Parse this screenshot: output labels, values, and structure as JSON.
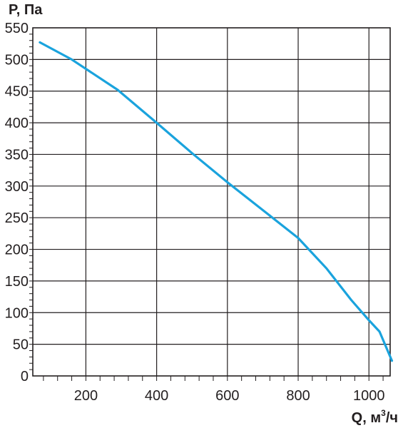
{
  "chart_data": {
    "type": "line",
    "title": "",
    "xlabel": "Q, м",
    "xlabel_sup": "3",
    "xlabel_tail": "/ч",
    "ylabel": "P, Па",
    "xlim": [
      50,
      1060
    ],
    "ylim": [
      0,
      550
    ],
    "x_ticks": [
      200,
      400,
      600,
      800,
      1000
    ],
    "x_tick_labels": [
      "200",
      "400",
      "600",
      "800",
      "1000"
    ],
    "y_ticks": [
      0,
      50,
      100,
      150,
      200,
      250,
      300,
      350,
      400,
      450,
      500,
      550
    ],
    "y_tick_labels": [
      "0",
      "50",
      "100",
      "150",
      "200",
      "250",
      "300",
      "350",
      "400",
      "450",
      "500",
      "550"
    ],
    "grid": true,
    "series": [
      {
        "color": "#1aa3dd",
        "x": [
          70,
          160,
          290,
          400,
          500,
          600,
          700,
          800,
          880,
          950,
          1000,
          1030,
          1065
        ],
        "y": [
          527,
          500,
          452,
          400,
          352,
          306,
          262,
          218,
          170,
          120,
          88,
          70,
          24
        ]
      }
    ]
  }
}
